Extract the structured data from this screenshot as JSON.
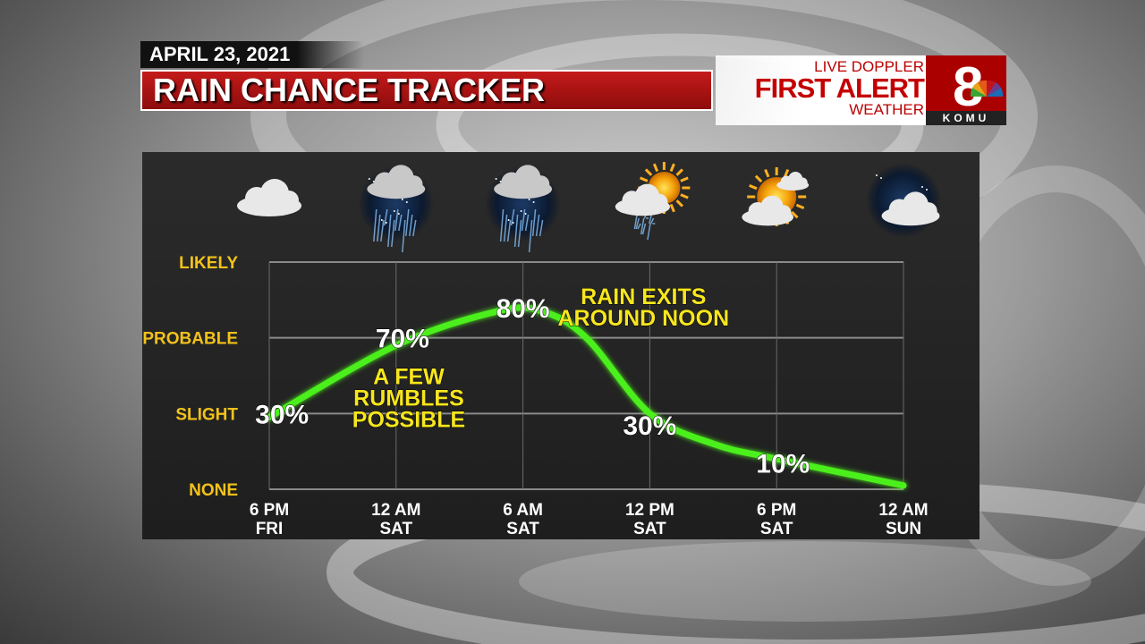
{
  "header": {
    "date": "APRIL 23, 2021",
    "title": "RAIN CHANCE TRACKER"
  },
  "brand": {
    "line1": "LIVE DOPPLER",
    "line2": "FIRST ALERT",
    "line3": "WEATHER",
    "logo_number": "8",
    "logo_text": "KOMU",
    "color": "#c40000"
  },
  "chart_data": {
    "type": "line",
    "x": [
      "6 PM FRI",
      "12 AM SAT",
      "6 AM SAT",
      "12 PM SAT",
      "6 PM SAT",
      "12 AM SUN"
    ],
    "xtick_labels": [
      [
        "6 PM",
        "FRI"
      ],
      [
        "12 AM",
        "SAT"
      ],
      [
        "6 AM",
        "SAT"
      ],
      [
        "12 PM",
        "SAT"
      ],
      [
        "6 PM",
        "SAT"
      ],
      [
        "12 AM",
        "SUN"
      ]
    ],
    "ytick_labels": [
      "NONE",
      "SLIGHT",
      "PROBABLE",
      "LIKELY"
    ],
    "ylim": [
      0,
      3
    ],
    "series": [
      {
        "color": "#4cf01a",
        "points": [
          {
            "x": 0.0,
            "y": 0.95
          },
          {
            "x": 1.0,
            "y": 1.9
          },
          {
            "x": 1.8,
            "y": 2.35
          },
          {
            "x": 2.15,
            "y": 2.35
          },
          {
            "x": 2.5,
            "y": 2.0
          },
          {
            "x": 3.0,
            "y": 1.0
          },
          {
            "x": 3.5,
            "y": 0.6
          },
          {
            "x": 4.0,
            "y": 0.4
          },
          {
            "x": 5.0,
            "y": 0.05
          }
        ]
      }
    ],
    "data_labels": [
      {
        "text": "30%",
        "x": 0.1,
        "y": 1.0
      },
      {
        "text": "70%",
        "x": 1.05,
        "y": 2.0
      },
      {
        "text": "80%",
        "x": 2.0,
        "y": 2.4
      },
      {
        "text": "30%",
        "x": 3.0,
        "y": 0.85
      },
      {
        "text": "10%",
        "x": 4.05,
        "y": 0.35
      }
    ],
    "annotations": [
      {
        "lines": [
          "A FEW",
          "RUMBLES",
          "POSSIBLE"
        ],
        "x": 1.1,
        "y": 1.2
      },
      {
        "lines": [
          "RAIN EXITS",
          "AROUND NOON"
        ],
        "x": 2.95,
        "y": 2.4
      }
    ],
    "icons": [
      "cloudy-icon",
      "rain-night-icon",
      "rain-night-icon",
      "sun-cloud-showers-icon",
      "partly-sunny-icon",
      "cloudy-night-icon"
    ],
    "grid": true
  }
}
